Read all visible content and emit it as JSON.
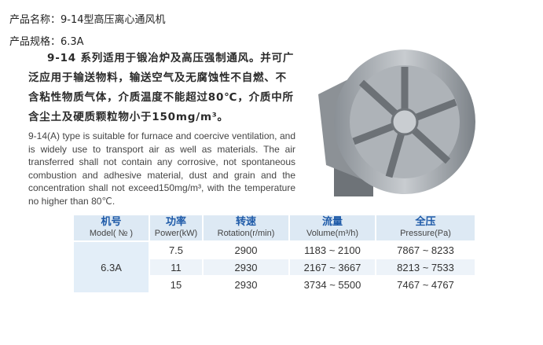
{
  "product_name": "产品名称：9-14型高压离心通风机",
  "product_spec": "产品规格：6.3A",
  "desc_cn_first": "9-14 系列适用于锻冶炉及高压强制通风。并可广",
  "desc_cn_rest": "泛应用于输送物料，输送空气及无腐蚀性不自燃、不含粘性物质气体，介质温度不能超过80℃，介质中所含尘土及硬质颗粒物小于150mg/m³。",
  "desc_en": "9-14(A) type is suitable for furnace and coercive ventilation, and is widely use to transport air as well as materials. The air transferred shall not contain any corrosive, not spontaneous combustion and adhesive material, dust and grain and the concentration shall not exceed150mg/m³, with the temperature no higher than 80℃.",
  "table": {
    "headers": [
      {
        "cn": "机号",
        "en": "Model( № )"
      },
      {
        "cn": "功率",
        "en": "Power(kW)"
      },
      {
        "cn": "转速",
        "en": "Rotation(r/min)"
      },
      {
        "cn": "流量",
        "en": "Volume(m³/h)"
      },
      {
        "cn": "全压",
        "en": "Pressure(Pa)"
      }
    ],
    "model": "6.3A",
    "rows": [
      {
        "power": "7.5",
        "rotation": "2900",
        "volume": "1183 ~ 2100",
        "pressure": "7867 ~ 8233"
      },
      {
        "power": "11",
        "rotation": "2930",
        "volume": "2167 ~ 3667",
        "pressure": "8213 ~ 7533"
      },
      {
        "power": "15",
        "rotation": "2930",
        "volume": "3734 ~ 5500",
        "pressure": "7467 ~ 4767"
      }
    ]
  }
}
